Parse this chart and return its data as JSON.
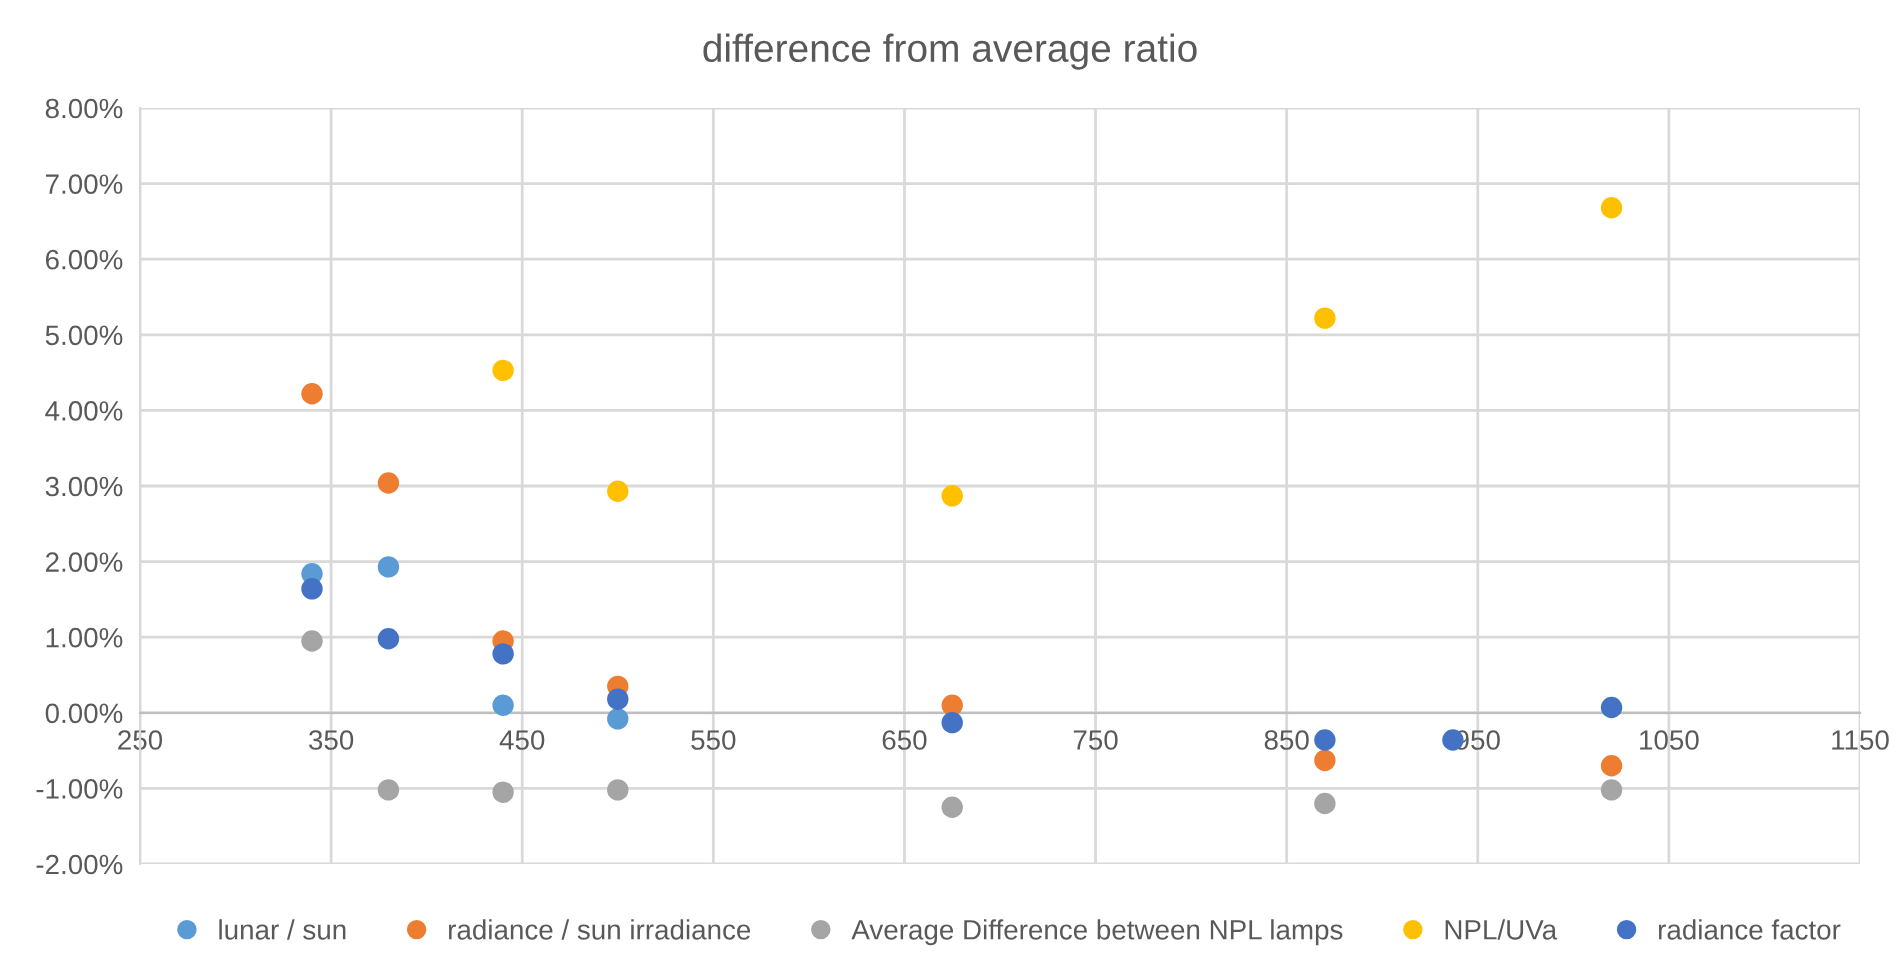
{
  "chart_data": {
    "type": "scatter",
    "title": "difference from average ratio",
    "series": [
      {
        "name": "lunar / sun",
        "color": "#5b9bd5",
        "x": [
          340,
          380,
          440,
          500
        ],
        "values": [
          1.84,
          1.93,
          0.1,
          -0.08
        ]
      },
      {
        "name": "radiance / sun irradiance",
        "color": "#ed7d31",
        "x": [
          340,
          380,
          440,
          500,
          675,
          870,
          1020
        ],
        "values": [
          4.22,
          3.04,
          0.95,
          0.35,
          0.1,
          -0.63,
          -0.7
        ]
      },
      {
        "name": "Average Difference between NPL lamps",
        "color": "#a5a5a5",
        "x": [
          340,
          380,
          440,
          500,
          675,
          870,
          1020
        ],
        "values": [
          0.95,
          -1.02,
          -1.05,
          -1.02,
          -1.25,
          -1.2,
          -1.02
        ]
      },
      {
        "name": "NPL/UVa",
        "color": "#ffc000",
        "x": [
          440,
          500,
          675,
          870,
          1020
        ],
        "values": [
          4.53,
          2.93,
          2.87,
          5.22,
          6.68
        ]
      },
      {
        "name": "radiance factor",
        "color": "#4472c4",
        "x": [
          340,
          380,
          440,
          500,
          675,
          870,
          937,
          1020
        ],
        "values": [
          1.64,
          0.98,
          0.78,
          0.18,
          -0.13,
          -0.36,
          -0.36,
          0.07
        ]
      }
    ],
    "xlim": [
      250,
      1150
    ],
    "xticks": [
      250,
      350,
      450,
      550,
      650,
      750,
      850,
      950,
      1050,
      1150
    ],
    "ylim": [
      -2,
      8
    ],
    "yticks": [
      {
        "value": -2,
        "label": "-2.00%"
      },
      {
        "value": -1,
        "label": "-1.00%"
      },
      {
        "value": 0,
        "label": "0.00%"
      },
      {
        "value": 1,
        "label": "1.00%"
      },
      {
        "value": 2,
        "label": "2.00%"
      },
      {
        "value": 3,
        "label": "3.00%"
      },
      {
        "value": 4,
        "label": "4.00%"
      },
      {
        "value": 5,
        "label": "5.00%"
      },
      {
        "value": 6,
        "label": "6.00%"
      },
      {
        "value": 7,
        "label": "7.00%"
      },
      {
        "value": 8,
        "label": "8.00%"
      }
    ],
    "grid": true,
    "legend": "bottom",
    "marker": "circle"
  }
}
